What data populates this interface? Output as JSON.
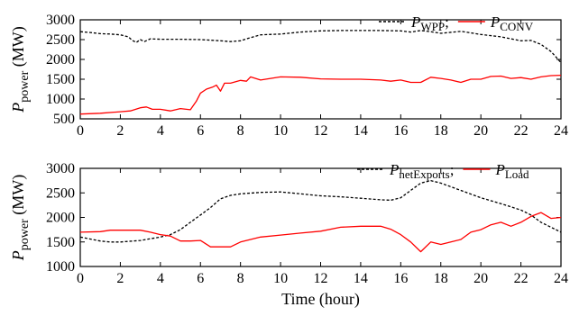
{
  "chart_data": [
    {
      "type": "line",
      "ylabel": "P",
      "ylabel_sub": "power",
      "ylabel_unit": "(MW)",
      "xlim": [
        0,
        24
      ],
      "ylim": [
        500,
        3000
      ],
      "yticks": [
        "500",
        "1000",
        "1500",
        "2000",
        "2500",
        "3000"
      ],
      "ytick_values": [
        500,
        1000,
        1500,
        2000,
        2500,
        3000
      ],
      "xticks": [
        "0",
        "2",
        "4",
        "6",
        "8",
        "10",
        "12",
        "14",
        "16",
        "18",
        "20",
        "22",
        "24"
      ],
      "xtick_values": [
        0,
        2,
        4,
        6,
        8,
        10,
        12,
        14,
        16,
        18,
        20,
        22,
        24
      ],
      "legend_position": "top-right",
      "legend": [
        {
          "main": "P",
          "sub": "WPP",
          "sep": ";"
        },
        {
          "main": "P",
          "sub": "CONV",
          "sep": ""
        }
      ],
      "series": [
        {
          "style": "dashed",
          "color": "#000000",
          "x": [
            0,
            0.5,
            1,
            1.5,
            2,
            2.4,
            2.6,
            2.8,
            3,
            3.2,
            3.5,
            4,
            5,
            6,
            7,
            7.5,
            8,
            8.5,
            9,
            10,
            11,
            12,
            13,
            14,
            15,
            16,
            16.5,
            17,
            17.5,
            18,
            19,
            19.5,
            20,
            21,
            22,
            22.5,
            23,
            23.5,
            24
          ],
          "y": [
            2700,
            2680,
            2650,
            2640,
            2620,
            2570,
            2480,
            2430,
            2500,
            2450,
            2520,
            2510,
            2510,
            2500,
            2470,
            2450,
            2470,
            2550,
            2620,
            2640,
            2690,
            2720,
            2730,
            2730,
            2730,
            2720,
            2690,
            2730,
            2700,
            2660,
            2710,
            2670,
            2630,
            2570,
            2470,
            2480,
            2380,
            2200,
            1920
          ]
        },
        {
          "style": "solid",
          "color": "#ff0000",
          "x": [
            0,
            1,
            2,
            2.5,
            3,
            3.3,
            3.6,
            4,
            4.5,
            5,
            5.5,
            5.8,
            6,
            6.3,
            6.6,
            6.8,
            7,
            7.2,
            7.5,
            8,
            8.3,
            8.5,
            9,
            10,
            11,
            12,
            13,
            14,
            15,
            15.5,
            16,
            16.5,
            17,
            17.5,
            18,
            18.5,
            19,
            19.5,
            20,
            20.5,
            21,
            21.5,
            22,
            22.5,
            23,
            23.5,
            24
          ],
          "y": [
            620,
            640,
            680,
            700,
            780,
            800,
            740,
            740,
            700,
            760,
            730,
            950,
            1150,
            1250,
            1300,
            1350,
            1200,
            1400,
            1400,
            1470,
            1450,
            1560,
            1480,
            1560,
            1550,
            1510,
            1500,
            1500,
            1480,
            1450,
            1480,
            1420,
            1420,
            1550,
            1520,
            1480,
            1420,
            1500,
            1500,
            1570,
            1580,
            1520,
            1540,
            1500,
            1560,
            1590,
            1600
          ]
        }
      ]
    },
    {
      "type": "line",
      "xlabel": "Time (hour)",
      "ylabel": "P",
      "ylabel_sub": "power",
      "ylabel_unit": "(MW)",
      "xlim": [
        0,
        24
      ],
      "ylim": [
        1000,
        3000
      ],
      "yticks": [
        "1000",
        "1500",
        "2000",
        "2500",
        "3000"
      ],
      "ytick_values": [
        1000,
        1500,
        2000,
        2500,
        3000
      ],
      "xticks": [
        "0",
        "2",
        "4",
        "6",
        "8",
        "10",
        "12",
        "14",
        "16",
        "18",
        "20",
        "22",
        "24"
      ],
      "xtick_values": [
        0,
        2,
        4,
        6,
        8,
        10,
        12,
        14,
        16,
        18,
        20,
        22,
        24
      ],
      "legend_position": "top-right",
      "legend": [
        {
          "main": "P",
          "sub": "netExports",
          "sep": ";"
        },
        {
          "main": "P",
          "sub": "Load",
          "sep": ""
        }
      ],
      "series": [
        {
          "style": "dashed",
          "color": "#000000",
          "x": [
            0,
            0.5,
            1,
            1.5,
            2,
            3,
            4,
            4.5,
            5,
            5.5,
            6,
            6.5,
            7,
            7.5,
            8,
            9,
            10,
            11,
            12,
            13,
            14,
            15,
            15.5,
            16,
            16.5,
            17,
            17.5,
            18,
            19,
            20,
            21,
            22,
            22.5,
            23,
            23.5,
            24
          ],
          "y": [
            1600,
            1560,
            1520,
            1500,
            1500,
            1530,
            1600,
            1650,
            1750,
            1900,
            2050,
            2200,
            2380,
            2450,
            2480,
            2510,
            2520,
            2480,
            2440,
            2420,
            2390,
            2360,
            2350,
            2400,
            2550,
            2700,
            2750,
            2700,
            2550,
            2400,
            2280,
            2150,
            2050,
            1900,
            1800,
            1700
          ]
        },
        {
          "style": "solid",
          "color": "#ff0000",
          "x": [
            0,
            1,
            1.5,
            3,
            3.5,
            4,
            4.5,
            5,
            5.5,
            6,
            6.5,
            7,
            7.5,
            8,
            8.5,
            9,
            10,
            11,
            12,
            13,
            14,
            15,
            15.5,
            16,
            16.5,
            17,
            17.5,
            18,
            18.5,
            19,
            19.5,
            20,
            20.5,
            21,
            21.5,
            22,
            22.5,
            23,
            23.5,
            24
          ],
          "y": [
            1700,
            1710,
            1740,
            1740,
            1700,
            1650,
            1620,
            1520,
            1520,
            1530,
            1400,
            1400,
            1400,
            1500,
            1550,
            1600,
            1640,
            1680,
            1720,
            1800,
            1820,
            1820,
            1760,
            1650,
            1500,
            1300,
            1500,
            1450,
            1500,
            1550,
            1700,
            1750,
            1850,
            1900,
            1820,
            1900,
            2020,
            2100,
            1980,
            2000
          ]
        }
      ]
    }
  ]
}
